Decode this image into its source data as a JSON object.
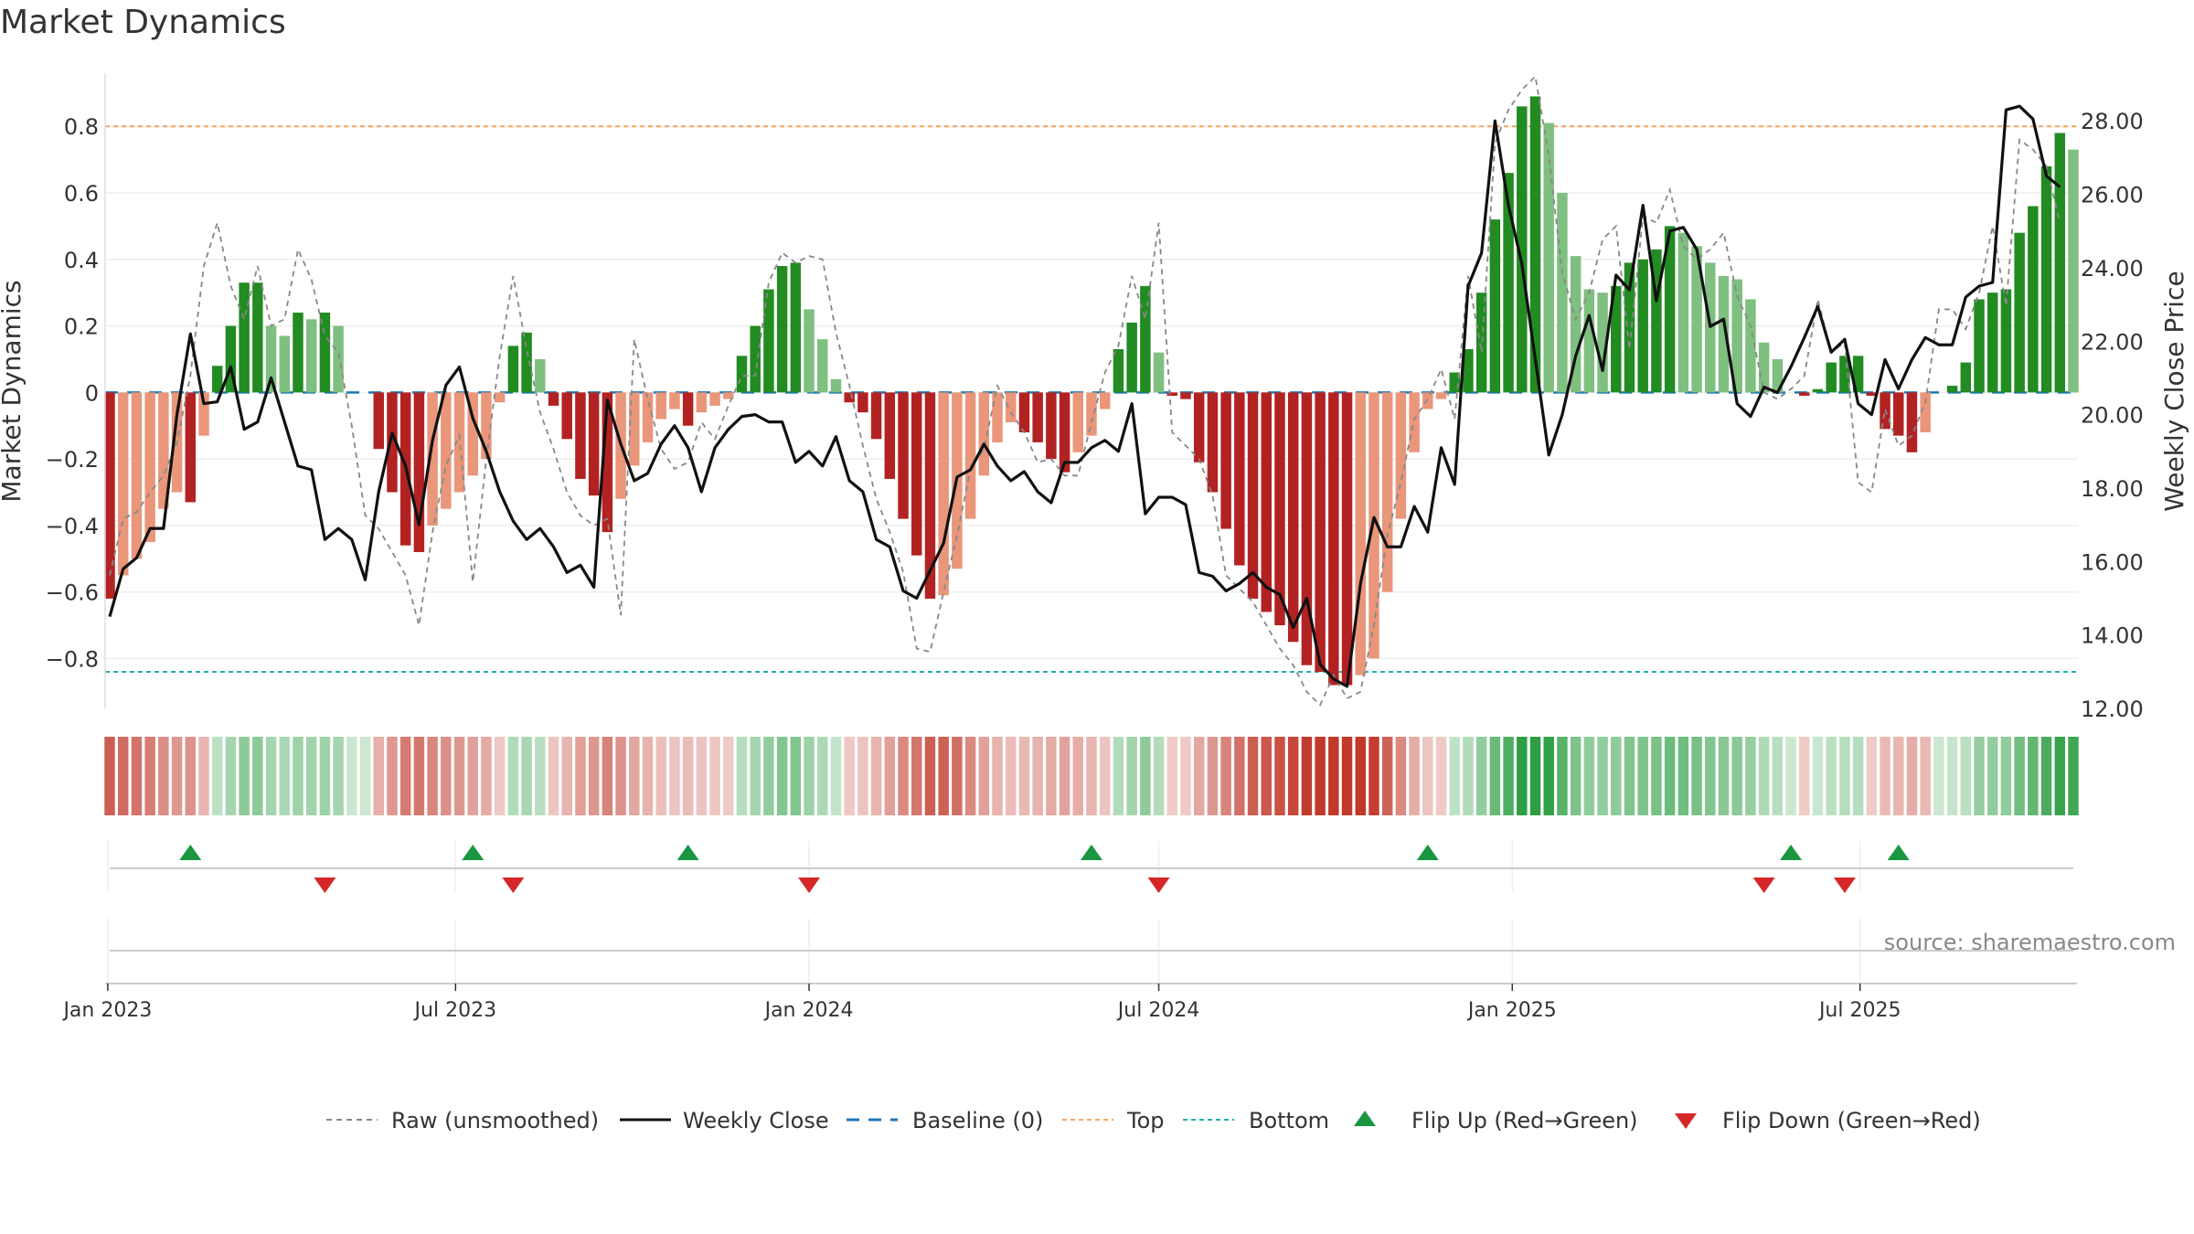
{
  "chart_data": {
    "type": "bar",
    "title": "Market Dynamics",
    "ylabel_left": "Market Dynamics",
    "ylabel_right": "Weekly Close Price",
    "ylim_left": [
      -0.95,
      0.96
    ],
    "ylim_right": [
      12.0,
      29.3
    ],
    "yticks_left": [
      0.8,
      0.6,
      0.4,
      0.2,
      0,
      -0.2,
      -0.4,
      -0.6,
      -0.8
    ],
    "ytick_labels_left": [
      "0.8",
      "0.6",
      "0.4",
      "0.2",
      "0",
      "−0.2",
      "−0.4",
      "−0.6",
      "−0.8"
    ],
    "yticks_right": [
      28,
      26,
      24,
      22,
      20,
      18,
      16,
      14,
      12
    ],
    "ytick_labels_right": [
      "28.00",
      "26.00",
      "24.00",
      "22.00",
      "20.00",
      "18.00",
      "16.00",
      "14.00",
      "12.00"
    ],
    "x_start": "2023-01-02",
    "x_end": "2025-09-22",
    "x_step": "1 week",
    "x_ticks": [
      "2023-01-01",
      "2023-07-01",
      "2024-01-01",
      "2024-07-01",
      "2025-01-01",
      "2025-07-01"
    ],
    "x_tick_labels": [
      "Jan 2023",
      "Jul 2023",
      "Jan 2024",
      "Jul 2024",
      "Jan 2025",
      "Jul 2025"
    ],
    "top_threshold": 0.8,
    "bottom_threshold": -0.84,
    "baseline": 0,
    "source_note": "source: sharemaestro.com",
    "grid": true,
    "legend_position": "bottom-center",
    "legend": [
      "Raw (unsmoothed)",
      "Weekly Close",
      "Baseline (0)",
      "Top",
      "Bottom",
      "Flip Up (Red→Green)",
      "Flip Down (Green→Red)"
    ],
    "colors": {
      "up_strong": "#228b22",
      "up_weak": "#7fbf7f",
      "down_strong": "#b22222",
      "down_weak": "#e9967a",
      "price": "#111111",
      "raw": "#888888",
      "baseline": "#1f77b4",
      "top": "#f4a460",
      "bottom": "#20b2aa",
      "flip_up": "#1a9641",
      "flip_down": "#d62728"
    },
    "dynamics": [
      -0.62,
      -0.55,
      -0.5,
      -0.45,
      -0.35,
      -0.3,
      -0.33,
      -0.13,
      0.08,
      0.2,
      0.33,
      0.33,
      0.2,
      0.17,
      0.24,
      0.22,
      0.24,
      0.2,
      0.0,
      0.0,
      -0.17,
      -0.3,
      -0.46,
      -0.48,
      -0.4,
      -0.35,
      -0.3,
      -0.25,
      -0.2,
      -0.03,
      0.14,
      0.18,
      0.1,
      -0.04,
      -0.14,
      -0.26,
      -0.31,
      -0.42,
      -0.32,
      -0.22,
      -0.15,
      -0.08,
      -0.05,
      -0.1,
      -0.06,
      -0.04,
      -0.02,
      0.11,
      0.2,
      0.31,
      0.38,
      0.39,
      0.25,
      0.16,
      0.04,
      -0.03,
      -0.06,
      -0.14,
      -0.26,
      -0.38,
      -0.49,
      -0.62,
      -0.61,
      -0.53,
      -0.38,
      -0.25,
      -0.15,
      -0.09,
      -0.12,
      -0.15,
      -0.2,
      -0.24,
      -0.18,
      -0.13,
      -0.05,
      0.13,
      0.21,
      0.32,
      0.12,
      -0.01,
      -0.02,
      -0.21,
      -0.3,
      -0.41,
      -0.52,
      -0.62,
      -0.66,
      -0.7,
      -0.75,
      -0.82,
      -0.84,
      -0.88,
      -0.88,
      -0.85,
      -0.8,
      -0.6,
      -0.38,
      -0.18,
      -0.05,
      -0.02,
      0.06,
      0.13,
      0.3,
      0.52,
      0.66,
      0.86,
      0.89,
      0.81,
      0.6,
      0.41,
      0.31,
      0.3,
      0.32,
      0.39,
      0.4,
      0.43,
      0.5,
      0.48,
      0.44,
      0.39,
      0.35,
      0.34,
      0.28,
      0.15,
      0.1,
      0.0,
      -0.01,
      0.01,
      0.09,
      0.11,
      0.11,
      -0.01,
      -0.11,
      -0.13,
      -0.18,
      -0.12,
      0.0,
      0.02,
      0.09,
      0.28,
      0.3,
      0.31,
      0.48,
      0.56,
      0.68,
      0.78,
      0.73
    ],
    "raw": [
      -0.55,
      -0.38,
      -0.36,
      -0.3,
      -0.25,
      -0.15,
      0.05,
      0.38,
      0.51,
      0.32,
      0.22,
      0.38,
      0.2,
      0.22,
      0.43,
      0.34,
      0.17,
      0.12,
      -0.1,
      -0.37,
      -0.41,
      -0.48,
      -0.55,
      -0.7,
      -0.42,
      -0.22,
      -0.13,
      -0.57,
      -0.2,
      0.11,
      0.35,
      0.13,
      -0.06,
      -0.17,
      -0.3,
      -0.37,
      -0.4,
      -0.38,
      -0.67,
      0.16,
      -0.02,
      -0.17,
      -0.23,
      -0.21,
      -0.09,
      -0.14,
      -0.04,
      0.05,
      0.05,
      0.33,
      0.42,
      0.39,
      0.41,
      0.4,
      0.18,
      0.02,
      -0.16,
      -0.32,
      -0.42,
      -0.54,
      -0.77,
      -0.78,
      -0.6,
      -0.43,
      -0.23,
      -0.17,
      0.02,
      -0.06,
      -0.12,
      -0.21,
      -0.2,
      -0.25,
      -0.25,
      -0.09,
      0.06,
      0.14,
      0.35,
      0.22,
      0.51,
      -0.12,
      -0.16,
      -0.2,
      -0.31,
      -0.55,
      -0.59,
      -0.63,
      -0.7,
      -0.77,
      -0.82,
      -0.9,
      -0.94,
      -0.85,
      -0.92,
      -0.9,
      -0.7,
      -0.43,
      -0.27,
      -0.08,
      -0.02,
      0.07,
      -0.08,
      0.35,
      0.12,
      0.75,
      0.85,
      0.91,
      0.95,
      0.71,
      0.36,
      0.22,
      0.3,
      0.46,
      0.5,
      0.13,
      0.53,
      0.51,
      0.61,
      0.44,
      0.4,
      0.43,
      0.48,
      0.29,
      0.2,
      0.0,
      -0.02,
      0.01,
      0.05,
      0.28,
      0.12,
      0.15,
      -0.27,
      -0.3,
      -0.05,
      -0.16,
      -0.13,
      -0.03,
      0.25,
      0.25,
      0.19,
      0.3,
      0.5,
      0.26,
      0.76,
      0.73,
      0.68,
      0.51
    ],
    "price": [
      14.5,
      15.8,
      16.1,
      16.9,
      16.9,
      20.0,
      22.2,
      20.3,
      20.35,
      21.3,
      19.6,
      19.8,
      21.0,
      19.8,
      18.6,
      18.5,
      16.6,
      16.9,
      16.6,
      15.5,
      17.9,
      19.5,
      18.6,
      17.0,
      19.3,
      20.8,
      21.3,
      19.9,
      19.0,
      17.9,
      17.1,
      16.6,
      16.9,
      16.4,
      15.7,
      15.9,
      15.3,
      20.4,
      19.2,
      18.2,
      18.4,
      19.2,
      19.7,
      19.1,
      17.9,
      19.1,
      19.6,
      19.95,
      20.0,
      19.8,
      19.8,
      18.7,
      19.0,
      18.6,
      19.4,
      18.2,
      17.9,
      16.6,
      16.4,
      15.2,
      15.0,
      15.75,
      16.5,
      18.3,
      18.5,
      19.2,
      18.6,
      18.2,
      18.45,
      17.9,
      17.6,
      18.7,
      18.7,
      19.1,
      19.3,
      19.0,
      20.3,
      17.3,
      17.75,
      17.75,
      17.55,
      15.7,
      15.6,
      15.2,
      15.4,
      15.7,
      15.3,
      15.1,
      14.2,
      15.0,
      13.2,
      12.8,
      12.6,
      15.4,
      17.2,
      16.4,
      16.4,
      17.5,
      16.8,
      19.1,
      18.1,
      23.5,
      24.4,
      28.0,
      25.7,
      24.1,
      21.5,
      18.9,
      20.0,
      21.6,
      22.7,
      21.2,
      23.8,
      23.4,
      25.7,
      23.1,
      25.0,
      25.1,
      24.5,
      22.4,
      22.6,
      20.3,
      19.95,
      20.75,
      20.6,
      21.3,
      22.1,
      22.95,
      21.7,
      22.05,
      20.3,
      20.0,
      21.5,
      20.7,
      21.5,
      22.1,
      21.9,
      21.9,
      23.2,
      23.5,
      23.6,
      28.3,
      28.4,
      28.05,
      26.5,
      26.2
    ],
    "flip_up_indices": [
      6,
      27,
      43,
      73,
      98,
      125,
      133
    ],
    "flip_down_indices": [
      16,
      30,
      52,
      78,
      123,
      129
    ]
  }
}
